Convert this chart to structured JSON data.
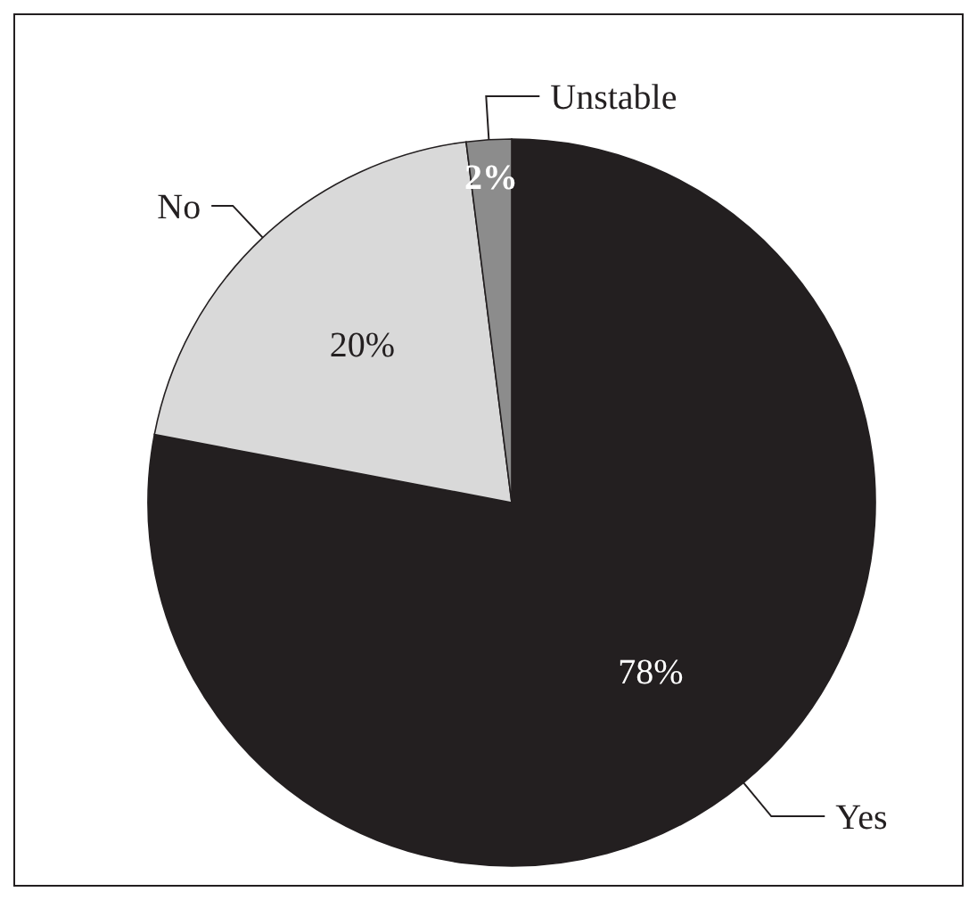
{
  "chart_data": {
    "type": "pie",
    "categories": [
      "Yes",
      "No",
      "Unstable"
    ],
    "values": [
      78,
      20,
      2
    ],
    "colors": [
      "#231f20",
      "#d9d9d9",
      "#8c8c8c"
    ],
    "value_labels": [
      "78%",
      "20%",
      "2%"
    ],
    "legend": false
  }
}
